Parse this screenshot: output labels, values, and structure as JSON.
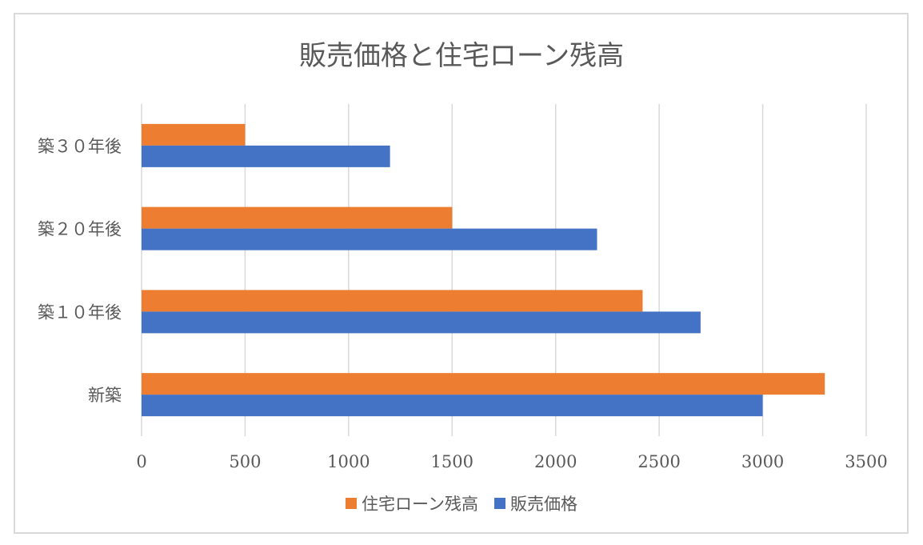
{
  "chart_data": {
    "type": "bar",
    "orientation": "horizontal",
    "title": "販売価格と住宅ローン残高",
    "categories": [
      "新築",
      "築１０年後",
      "築２０年後",
      "築３０年後"
    ],
    "series": [
      {
        "name": "住宅ローン残高",
        "color": "#ED7D31",
        "values": [
          3300,
          2420,
          1500,
          500
        ]
      },
      {
        "name": "販売価格",
        "color": "#4472C4",
        "values": [
          3000,
          2700,
          2200,
          1200
        ]
      }
    ],
    "xlim": [
      0,
      3500
    ],
    "xticks": [
      "0",
      "500",
      "1000",
      "1500",
      "2000",
      "2500",
      "3000",
      "3500"
    ],
    "grid": true,
    "legend_position": "bottom"
  }
}
